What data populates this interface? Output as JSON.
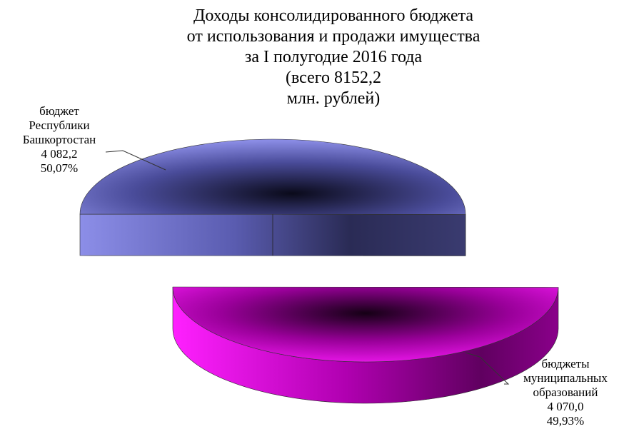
{
  "chart_data": {
    "type": "pie",
    "title_lines": [
      "Доходы консолидированного бюджета",
      "от использования и продажи имущества",
      "за I полугодие 2016 года",
      "(всего 8152,2",
      "млн. рублей)"
    ],
    "total": 8152.2,
    "slices": [
      {
        "label_lines": [
          "бюджет",
          "Республики",
          "Башкортостан"
        ],
        "value": 4082.2,
        "value_label": "4 082,2",
        "percent": 50.07,
        "percent_label": "50,07%",
        "color": "#7d80e0",
        "color_dark": "#3a3b70"
      },
      {
        "label_lines": [
          "бюджеты",
          "муниципальных",
          "образований"
        ],
        "value": 4070.0,
        "value_label": "4 070,0",
        "percent": 49.93,
        "percent_label": "49,93%",
        "color": "#e000e0",
        "color_dark": "#6a006a"
      }
    ],
    "style": "3d-exploded-pie",
    "legend": "none"
  }
}
